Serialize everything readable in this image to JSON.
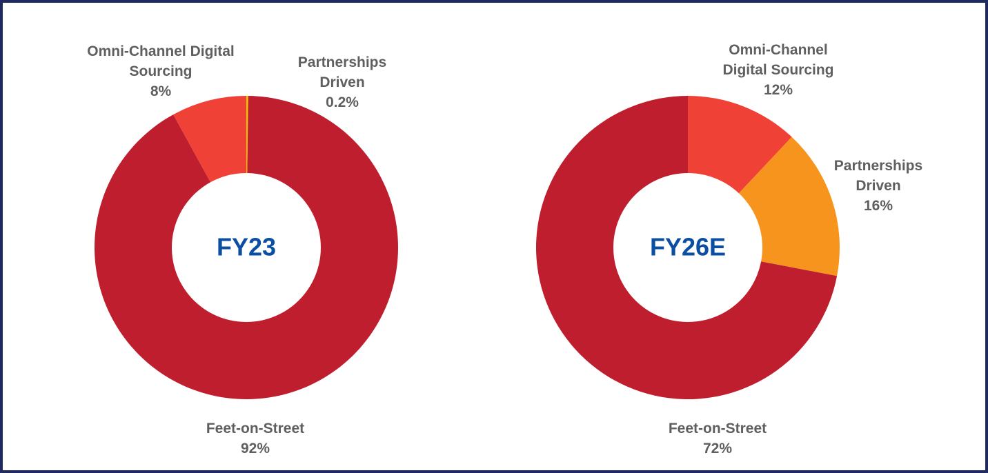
{
  "chart_data": [
    {
      "type": "pie",
      "donut": true,
      "center_label": "FY23",
      "categories": [
        "Partnerships Driven",
        "Feet-on-Street",
        "Omni-Channel Digital Sourcing"
      ],
      "values": [
        0.2,
        92,
        8
      ],
      "value_labels": [
        "0.2%",
        "92%",
        "8%"
      ],
      "colors": [
        "#f5c400",
        "#be1e2d",
        "#ef4136"
      ]
    },
    {
      "type": "pie",
      "donut": true,
      "center_label": "FY26E",
      "categories": [
        "Omni-Channel Digital Sourcing",
        "Partnerships Driven",
        "Feet-on-Street"
      ],
      "values": [
        12,
        16,
        72
      ],
      "value_labels": [
        "12%",
        "16%",
        "72%"
      ],
      "colors": [
        "#ef4136",
        "#f7941d",
        "#be1e2d"
      ]
    }
  ]
}
